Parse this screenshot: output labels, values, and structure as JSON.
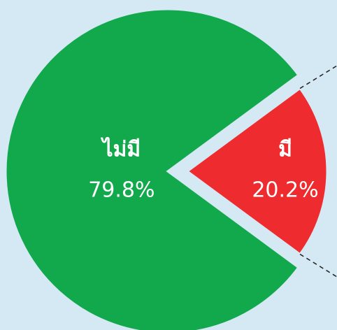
{
  "chart_data": {
    "type": "pie",
    "categories": [
      "ไม่มี",
      "มี"
    ],
    "values": [
      79.8,
      20.2
    ],
    "value_labels": [
      "79.8%",
      "20.2%"
    ],
    "colors": [
      "#12a84c",
      "#ee2b2e"
    ],
    "explode": [
      false,
      true
    ]
  }
}
